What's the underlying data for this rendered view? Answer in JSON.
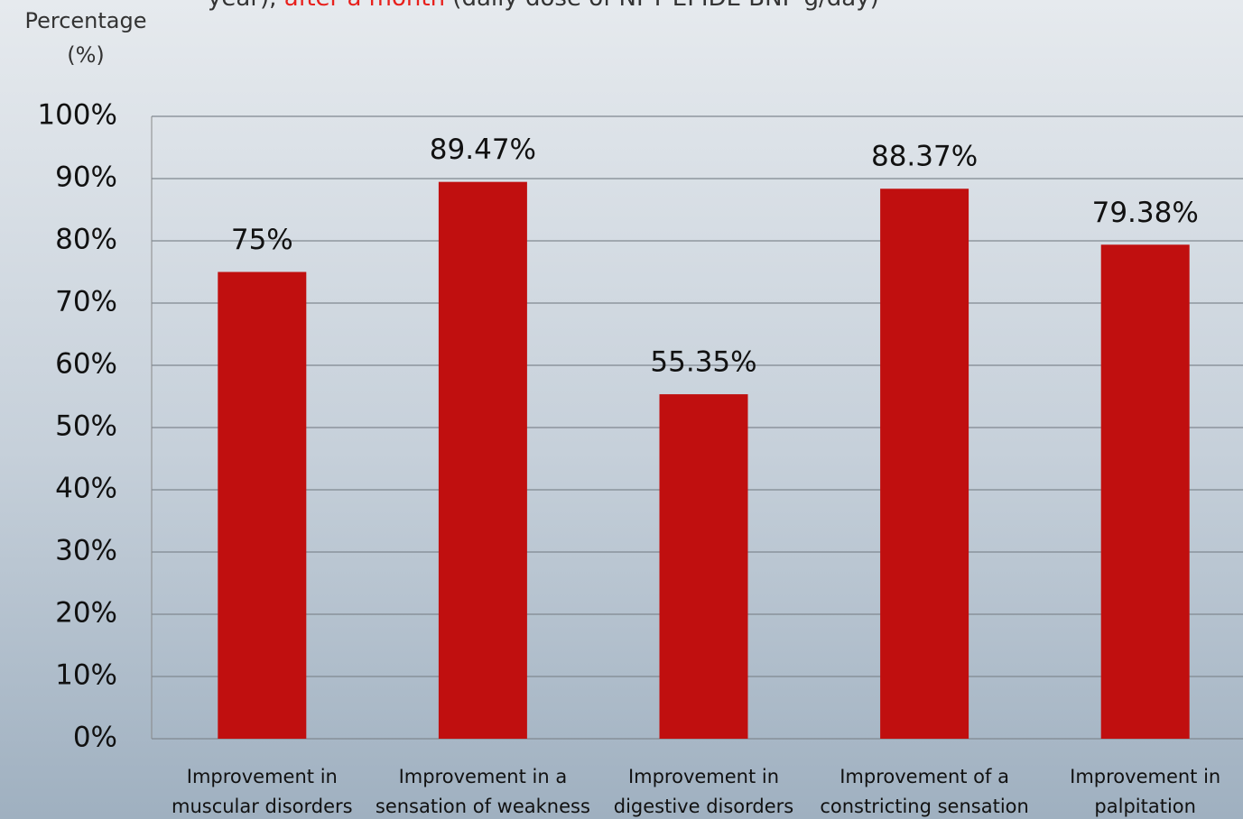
{
  "chart_data": {
    "type": "bar",
    "subtitle_parts": [
      "year), ",
      "after a month",
      " (daily dose of NPT EPIDE BNP g/day)"
    ],
    "y_axis_label": [
      "Percentage",
      "(%)"
    ],
    "categories": [
      [
        "Improvement in",
        "muscular disorders"
      ],
      [
        "Improvement in a",
        "sensation of weakness"
      ],
      [
        "Improvement in",
        "digestive disorders"
      ],
      [
        "Improvement of a",
        "constricting sensation"
      ],
      [
        "Improvement in",
        "palpitation"
      ]
    ],
    "values": [
      75,
      89.47,
      55.35,
      88.37,
      79.38
    ],
    "value_labels": [
      "75%",
      "89.47%",
      "55.35%",
      "88.37%",
      "79.38%"
    ],
    "color": "#c00f0f",
    "highlight_color": "#e8201c",
    "ylim": [
      0,
      100
    ],
    "yticks": [
      {
        "value": 0,
        "label": "0%"
      },
      {
        "value": 10,
        "label": "10%"
      },
      {
        "value": 20,
        "label": "20%"
      },
      {
        "value": 30,
        "label": "30%"
      },
      {
        "value": 40,
        "label": "40%"
      },
      {
        "value": 50,
        "label": "50%"
      },
      {
        "value": 60,
        "label": "60%"
      },
      {
        "value": 70,
        "label": "70%"
      },
      {
        "value": 80,
        "label": "80%"
      },
      {
        "value": 90,
        "label": "90%"
      },
      {
        "value": 100,
        "label": "100%"
      }
    ],
    "grid": true
  }
}
